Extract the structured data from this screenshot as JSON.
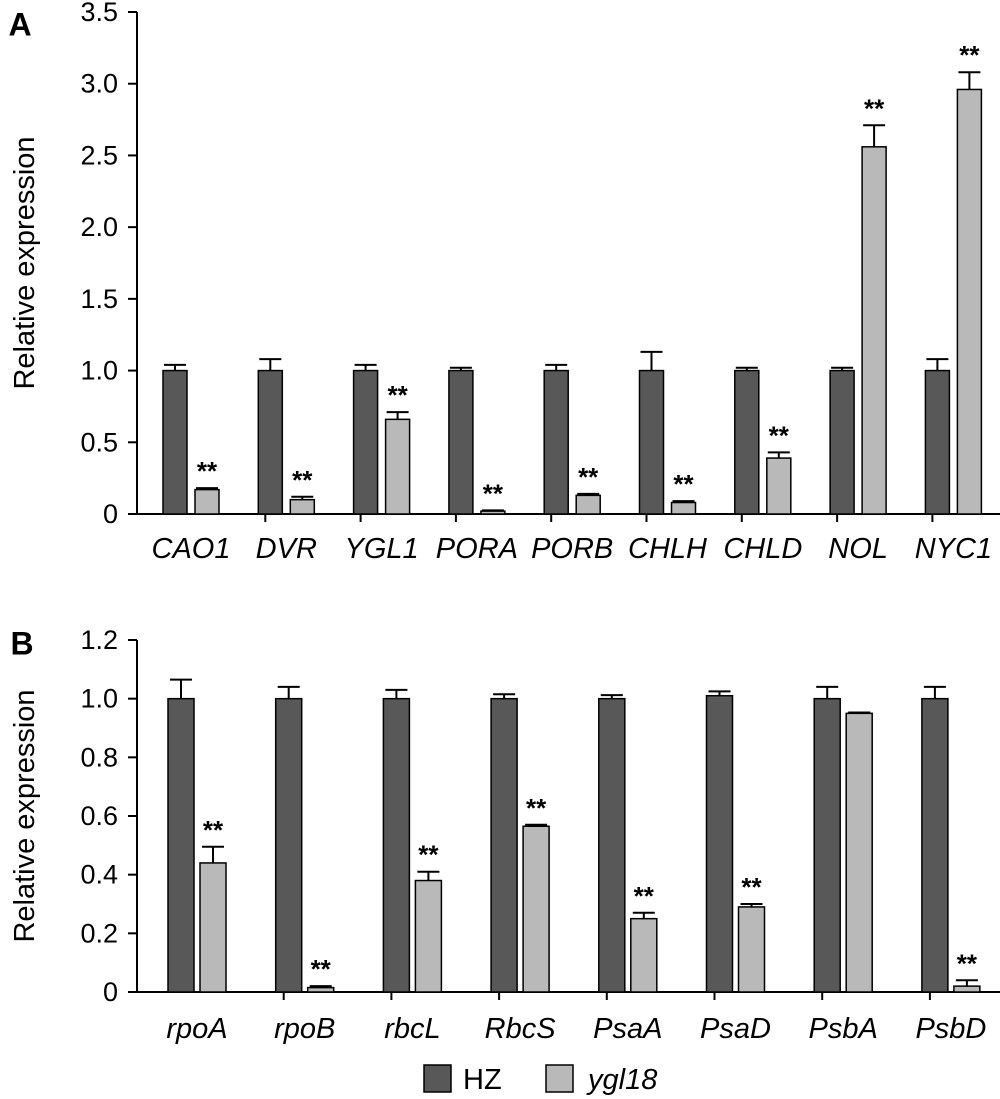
{
  "colors": {
    "HZ": "#585858",
    "ygl18": "#b9b9b9",
    "axis": "#000000"
  },
  "legend": {
    "placement": "bottom-center",
    "items": [
      {
        "label": "HZ",
        "color": "#585858",
        "italic": false
      },
      {
        "label": "ygl18",
        "color": "#b9b9b9",
        "italic": true
      }
    ]
  },
  "chart_data": [
    {
      "type": "bar",
      "panel_label": "A",
      "ylabel": "Relative expression",
      "ylim": [
        0,
        3.5
      ],
      "yticks": [
        "0",
        "0.5",
        "1.0",
        "1.5",
        "2.0",
        "2.5",
        "3.0",
        "3.5"
      ],
      "ytick_values": [
        0,
        0.5,
        1.0,
        1.5,
        2.0,
        2.5,
        3.0,
        3.5
      ],
      "categories": [
        "CAO1",
        "DVR",
        "YGL1",
        "PORA",
        "PORB",
        "CHLH",
        "CHLD",
        "NOL",
        "NYC1"
      ],
      "series": [
        {
          "name": "HZ",
          "values": [
            1.0,
            1.0,
            1.0,
            1.0,
            1.0,
            1.0,
            1.0,
            1.0,
            1.0
          ],
          "errors": [
            0.04,
            0.08,
            0.04,
            0.02,
            0.04,
            0.13,
            0.02,
            0.02,
            0.08
          ]
        },
        {
          "name": "ygl18",
          "values": [
            0.17,
            0.1,
            0.66,
            0.02,
            0.13,
            0.08,
            0.39,
            2.56,
            2.96
          ],
          "errors": [
            0.01,
            0.02,
            0.05,
            0.005,
            0.01,
            0.01,
            0.04,
            0.15,
            0.12
          ]
        }
      ],
      "significance": [
        "**",
        "**",
        "**",
        "**",
        "**",
        "**",
        "**",
        "**",
        "**"
      ],
      "grid": false
    },
    {
      "type": "bar",
      "panel_label": "B",
      "ylabel": "Relative expression",
      "ylim": [
        0,
        1.2
      ],
      "yticks": [
        "0",
        "0.2",
        "0.4",
        "0.6",
        "0.8",
        "1.0",
        "1.2"
      ],
      "ytick_values": [
        0,
        0.2,
        0.4,
        0.6,
        0.8,
        1.0,
        1.2
      ],
      "categories": [
        "rpoA",
        "rpoB",
        "rbcL",
        "RbcS",
        "PsaA",
        "PsaD",
        "PsbA",
        "PsbD"
      ],
      "series": [
        {
          "name": "HZ",
          "values": [
            1.0,
            1.0,
            1.0,
            1.0,
            1.0,
            1.01,
            1.0,
            1.0
          ],
          "errors": [
            0.065,
            0.04,
            0.03,
            0.015,
            0.012,
            0.015,
            0.04,
            0.04
          ]
        },
        {
          "name": "ygl18",
          "values": [
            0.44,
            0.015,
            0.38,
            0.565,
            0.25,
            0.29,
            0.95,
            0.02
          ],
          "errors": [
            0.055,
            0.005,
            0.03,
            0.005,
            0.02,
            0.01,
            0.003,
            0.02
          ]
        }
      ],
      "significance": [
        "**",
        "**",
        "**",
        "**",
        "**",
        "**",
        "",
        "**"
      ],
      "grid": false
    }
  ]
}
